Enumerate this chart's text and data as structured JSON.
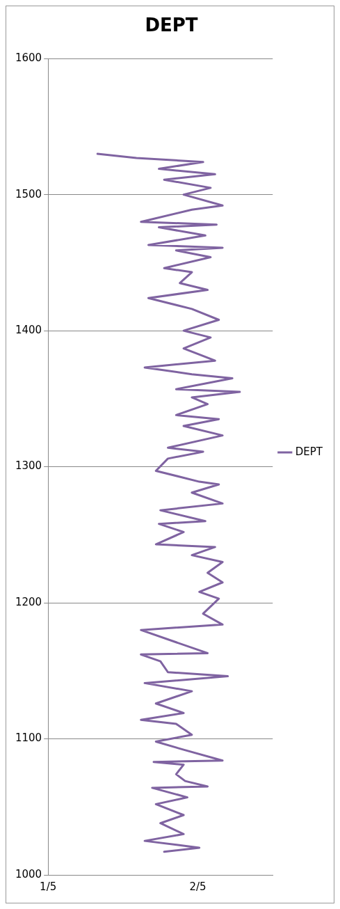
{
  "chart_data": {
    "type": "line",
    "title": "DEPT",
    "xlim": [
      0.2,
      0.5
    ],
    "xticks": [
      {
        "value": 0.2,
        "label": "1/5"
      },
      {
        "value": 0.4,
        "label": "2/5"
      }
    ],
    "ylim": [
      1000,
      1600
    ],
    "yticks": [
      1000,
      1100,
      1200,
      1300,
      1400,
      1500,
      1600
    ],
    "grid": "y",
    "legend": "right",
    "marker": "none",
    "line_style": "solid",
    "series": [
      {
        "name": "DEPT",
        "color": "#7f63a1",
        "x": [
          0.355,
          0.402,
          0.329,
          0.381,
          0.35,
          0.381,
          0.344,
          0.386,
          0.339,
          0.413,
          0.383,
          0.371,
          0.381,
          0.341,
          0.433,
          0.381,
          0.344,
          0.392,
          0.371,
          0.324,
          0.381,
          0.344,
          0.392,
          0.329,
          0.44,
          0.36,
          0.35,
          0.324,
          0.413,
          0.371,
          0.324,
          0.433,
          0.407,
          0.428,
          0.402,
          0.433,
          0.413,
          0.433,
          0.392,
          0.423,
          0.344,
          0.381,
          0.348,
          0.41,
          0.35,
          0.433,
          0.392,
          0.428,
          0.402,
          0.344,
          0.36,
          0.407,
          0.36,
          0.433,
          0.381,
          0.428,
          0.371,
          0.413,
          0.392,
          0.456,
          0.371,
          0.446,
          0.392,
          0.329,
          0.423,
          0.381,
          0.417,
          0.381,
          0.428,
          0.392,
          0.334,
          0.413,
          0.376,
          0.392,
          0.355,
          0.417,
          0.371,
          0.433,
          0.334,
          0.41,
          0.348,
          0.425,
          0.324,
          0.392,
          0.433,
          0.381,
          0.417,
          0.355,
          0.423,
          0.348,
          0.407,
          0.318,
          0.266
        ],
        "values": [
          1017,
          1020,
          1025,
          1030,
          1038,
          1044,
          1052,
          1057,
          1064,
          1065,
          1069,
          1074,
          1081,
          1083,
          1084,
          1092,
          1098,
          1103,
          1111,
          1114,
          1119,
          1126,
          1135,
          1141,
          1146,
          1149,
          1157,
          1162,
          1163,
          1171,
          1180,
          1184,
          1192,
          1203,
          1208,
          1215,
          1222,
          1230,
          1235,
          1241,
          1243,
          1252,
          1258,
          1260,
          1268,
          1273,
          1281,
          1287,
          1289,
          1297,
          1306,
          1311,
          1314,
          1323,
          1330,
          1335,
          1338,
          1346,
          1351,
          1355,
          1357,
          1365,
          1368,
          1373,
          1378,
          1387,
          1395,
          1400,
          1408,
          1416,
          1424,
          1430,
          1435,
          1443,
          1446,
          1454,
          1459,
          1461,
          1463,
          1470,
          1476,
          1478,
          1480,
          1489,
          1492,
          1500,
          1505,
          1511,
          1515,
          1519,
          1524,
          1527,
          1530
        ]
      }
    ]
  }
}
